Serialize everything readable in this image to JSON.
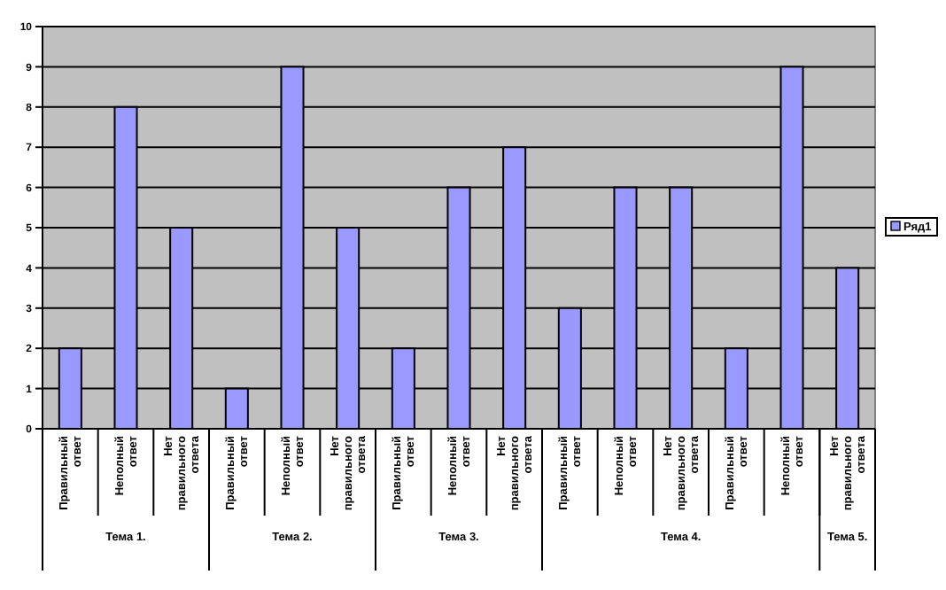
{
  "chart_data": {
    "type": "bar",
    "categories": [
      "Правильный ответ",
      "Неполный ответ",
      "Нет правильного ответа",
      "Правильный ответ",
      "Неполный ответ",
      "Нет правильного ответа",
      "Правильный ответ",
      "Неполный ответ",
      "Нет правильного ответа",
      "Правильный ответ",
      "Неполный ответ",
      "Нет правильного ответа",
      "Правильный ответ",
      "Неполный ответ",
      "Нет правильного ответа"
    ],
    "annotations": [
      "Тема 1.",
      "Тема 2.",
      "Тема 3.",
      "Тема 4.",
      "Тема 5."
    ],
    "series": [
      {
        "name": "Ряд1",
        "color": "#9999ff",
        "values": [
          2,
          8,
          5,
          1,
          9,
          5,
          2,
          6,
          7,
          3,
          6,
          6,
          2,
          9,
          4
        ]
      }
    ],
    "ylim": [
      0,
      10
    ],
    "yticks": [
      0,
      1,
      2,
      3,
      4,
      5,
      6,
      7,
      8,
      9,
      10
    ],
    "grid": "y",
    "legend": "right"
  }
}
